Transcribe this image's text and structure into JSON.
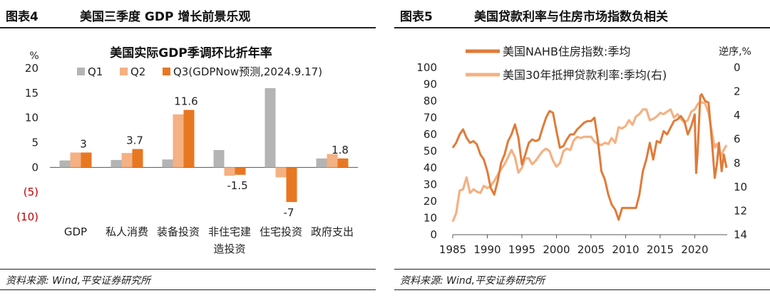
{
  "figures": [
    {
      "label": "图表4",
      "title": "美国三季度 GDP 增长前景乐观",
      "source": "资料来源: Wind,平安证券研究所"
    },
    {
      "label": "图表5",
      "title": "美国贷款利率与住房市场指数负相关",
      "source": "资料来源: Wind,平安证券研究所"
    }
  ],
  "chart_data": [
    {
      "type": "bar",
      "title": "美国实际GDP季调环比折年率",
      "ylabel": "%",
      "ylim": [
        -10,
        20
      ],
      "yticks": [
        {
          "value": 20,
          "label": "20",
          "color": "#222222"
        },
        {
          "value": 15,
          "label": "15",
          "color": "#222222"
        },
        {
          "value": 10,
          "label": "10",
          "color": "#222222"
        },
        {
          "value": 5,
          "label": "5",
          "color": "#222222"
        },
        {
          "value": 0,
          "label": "0",
          "color": "#222222"
        },
        {
          "value": -5,
          "label": "(5)",
          "color": "#c00000"
        },
        {
          "value": -10,
          "label": "(10)",
          "color": "#c00000"
        }
      ],
      "categories": [
        "GDP",
        "私人消费",
        "装备投资",
        "非住宅建\n造投资",
        "住宅投资",
        "政府支出"
      ],
      "series": [
        {
          "name": "Q1",
          "color": "#b4b4b4",
          "values": [
            1.4,
            1.5,
            1.6,
            3.5,
            16.0,
            1.8
          ]
        },
        {
          "name": "Q2",
          "color": "#f4b183",
          "values": [
            3.0,
            2.9,
            10.7,
            -1.7,
            -2.0,
            2.7
          ]
        },
        {
          "name": "Q3(GDPNow预测,2024.9.17)",
          "color": "#e87722",
          "values": [
            3.0,
            3.7,
            11.6,
            -1.5,
            -7.0,
            1.8
          ]
        }
      ],
      "data_labels": [
        {
          "category": 0,
          "series": 2,
          "text": "3"
        },
        {
          "category": 1,
          "series": 2,
          "text": "3.7"
        },
        {
          "category": 2,
          "series": 2,
          "text": "11.6"
        },
        {
          "category": 3,
          "series": 2,
          "text": "-1.5"
        },
        {
          "category": 4,
          "series": 2,
          "text": "-7"
        },
        {
          "category": 5,
          "series": 2,
          "text": "1.8"
        }
      ],
      "legend_placement": "top",
      "grid": false
    },
    {
      "type": "line",
      "xlim": [
        1985,
        2024.7
      ],
      "xticks": [
        1985,
        1990,
        1995,
        2000,
        2005,
        2010,
        2015,
        2020
      ],
      "ylim_left": [
        0,
        100
      ],
      "yticks_left": [
        0,
        10,
        20,
        30,
        40,
        50,
        60,
        70,
        80,
        90,
        100
      ],
      "ylim_right": [
        14,
        0
      ],
      "yticks_right": [
        0,
        2,
        4,
        6,
        8,
        10,
        12,
        14
      ],
      "right_axis_label": "逆序,%",
      "right_axis_inverted": true,
      "legend_placement": "top-left",
      "grid": false,
      "series": [
        {
          "name": "美国NAHB住房指数:季均",
          "axis": "left",
          "color": "#e07b39",
          "points": [
            [
              1985,
              52
            ],
            [
              1985.5,
              55
            ],
            [
              1986,
              60
            ],
            [
              1986.5,
              63
            ],
            [
              1987,
              58
            ],
            [
              1987.5,
              55
            ],
            [
              1988,
              56
            ],
            [
              1988.5,
              54
            ],
            [
              1989,
              48
            ],
            [
              1989.5,
              45
            ],
            [
              1990,
              38
            ],
            [
              1990.5,
              28
            ],
            [
              1991,
              24
            ],
            [
              1991.5,
              32
            ],
            [
              1992,
              43
            ],
            [
              1992.5,
              48
            ],
            [
              1993,
              56
            ],
            [
              1993.5,
              60
            ],
            [
              1994,
              66
            ],
            [
              1994.5,
              58
            ],
            [
              1995,
              42
            ],
            [
              1995.5,
              48
            ],
            [
              1996,
              55
            ],
            [
              1996.5,
              57
            ],
            [
              1997,
              56
            ],
            [
              1997.5,
              57
            ],
            [
              1998,
              64
            ],
            [
              1998.5,
              70
            ],
            [
              1999,
              74
            ],
            [
              1999.5,
              73
            ],
            [
              2000,
              62
            ],
            [
              2000.5,
              52
            ],
            [
              2001,
              53
            ],
            [
              2001.5,
              57
            ],
            [
              2002,
              60
            ],
            [
              2002.5,
              60
            ],
            [
              2003,
              63
            ],
            [
              2003.5,
              65
            ],
            [
              2004,
              67
            ],
            [
              2004.5,
              68
            ],
            [
              2005,
              68
            ],
            [
              2005.5,
              70
            ],
            [
              2006,
              56
            ],
            [
              2006.5,
              38
            ],
            [
              2007,
              33
            ],
            [
              2007.5,
              24
            ],
            [
              2008,
              18
            ],
            [
              2008.5,
              15
            ],
            [
              2009,
              9
            ],
            [
              2009.5,
              16
            ],
            [
              2010,
              16
            ],
            [
              2010.5,
              16
            ],
            [
              2011,
              16
            ],
            [
              2011.5,
              16
            ],
            [
              2012,
              24
            ],
            [
              2012.5,
              38
            ],
            [
              2013,
              45
            ],
            [
              2013.5,
              55
            ],
            [
              2014,
              45
            ],
            [
              2014.5,
              56
            ],
            [
              2015,
              55
            ],
            [
              2015.5,
              62
            ],
            [
              2016,
              60
            ],
            [
              2016.5,
              64
            ],
            [
              2017,
              68
            ],
            [
              2017.5,
              69
            ],
            [
              2018,
              71
            ],
            [
              2018.5,
              68
            ],
            [
              2019,
              60
            ],
            [
              2019.5,
              65
            ],
            [
              2020,
              72
            ],
            [
              2020.2,
              37
            ],
            [
              2020.4,
              48
            ],
            [
              2020.8,
              83
            ],
            [
              2021,
              84
            ],
            [
              2021.5,
              80
            ],
            [
              2022,
              79
            ],
            [
              2022.5,
              55
            ],
            [
              2022.9,
              34
            ],
            [
              2023.2,
              42
            ],
            [
              2023.5,
              55
            ],
            [
              2023.9,
              38
            ],
            [
              2024.2,
              48
            ],
            [
              2024.6,
              40
            ]
          ]
        },
        {
          "name": "美国30年抵押贷款利率:季均(右)",
          "axis": "right",
          "color": "#f4b183",
          "points": [
            [
              1985,
              12.9
            ],
            [
              1985.5,
              12.2
            ],
            [
              1986,
              10.3
            ],
            [
              1986.5,
              10.2
            ],
            [
              1987,
              9.2
            ],
            [
              1987.5,
              10.5
            ],
            [
              1988,
              10.2
            ],
            [
              1988.5,
              10.4
            ],
            [
              1989,
              10.5
            ],
            [
              1989.5,
              9.9
            ],
            [
              1990,
              10.1
            ],
            [
              1990.5,
              9.9
            ],
            [
              1991,
              9.5
            ],
            [
              1991.5,
              9.0
            ],
            [
              1992,
              8.5
            ],
            [
              1992.5,
              8.1
            ],
            [
              1993,
              7.5
            ],
            [
              1993.5,
              6.9
            ],
            [
              1994,
              7.5
            ],
            [
              1994.5,
              8.8
            ],
            [
              1995,
              8.4
            ],
            [
              1995.5,
              7.6
            ],
            [
              1996,
              7.6
            ],
            [
              1996.5,
              8.1
            ],
            [
              1997,
              7.8
            ],
            [
              1997.5,
              7.4
            ],
            [
              1998,
              7.0
            ],
            [
              1998.5,
              6.8
            ],
            [
              1999,
              7.0
            ],
            [
              1999.5,
              7.8
            ],
            [
              2000,
              8.3
            ],
            [
              2000.5,
              8.0
            ],
            [
              2001,
              7.0
            ],
            [
              2001.5,
              6.8
            ],
            [
              2002,
              6.9
            ],
            [
              2002.5,
              6.1
            ],
            [
              2003,
              5.8
            ],
            [
              2003.5,
              5.9
            ],
            [
              2004,
              5.8
            ],
            [
              2004.5,
              5.8
            ],
            [
              2005,
              5.8
            ],
            [
              2005.5,
              6.2
            ],
            [
              2006,
              6.4
            ],
            [
              2006.5,
              6.5
            ],
            [
              2007,
              6.3
            ],
            [
              2007.5,
              6.4
            ],
            [
              2008,
              5.9
            ],
            [
              2008.5,
              6.3
            ],
            [
              2009,
              5.0
            ],
            [
              2009.5,
              5.1
            ],
            [
              2010,
              4.9
            ],
            [
              2010.5,
              4.4
            ],
            [
              2011,
              4.8
            ],
            [
              2011.5,
              4.1
            ],
            [
              2012,
              3.9
            ],
            [
              2012.5,
              3.5
            ],
            [
              2013,
              3.5
            ],
            [
              2013.5,
              4.4
            ],
            [
              2014,
              4.3
            ],
            [
              2014.5,
              4.1
            ],
            [
              2015,
              3.8
            ],
            [
              2015.5,
              3.9
            ],
            [
              2016,
              3.7
            ],
            [
              2016.5,
              3.5
            ],
            [
              2017,
              4.2
            ],
            [
              2017.5,
              3.9
            ],
            [
              2018,
              4.3
            ],
            [
              2018.5,
              4.6
            ],
            [
              2019,
              4.4
            ],
            [
              2019.5,
              3.7
            ],
            [
              2020,
              3.5
            ],
            [
              2020.5,
              3.0
            ],
            [
              2021,
              2.9
            ],
            [
              2021.5,
              3.0
            ],
            [
              2022,
              3.8
            ],
            [
              2022.5,
              5.5
            ],
            [
              2022.9,
              6.7
            ],
            [
              2023.2,
              6.4
            ],
            [
              2023.5,
              6.9
            ],
            [
              2023.8,
              7.4
            ],
            [
              2024.2,
              6.9
            ],
            [
              2024.6,
              6.5
            ]
          ]
        }
      ]
    }
  ]
}
